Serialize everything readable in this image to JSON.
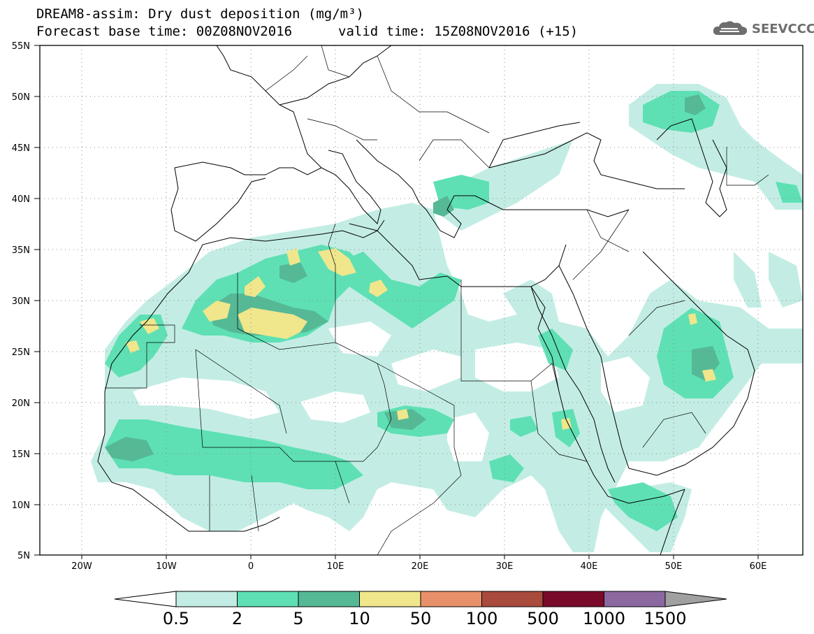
{
  "header": {
    "title": "DREAM8-assim: Dry dust deposition (mg/m³)",
    "base_time": "Forecast base time: 00Z08NOV2016",
    "valid_time": "valid time: 15Z08NOV2016 (+15)"
  },
  "logo": {
    "icon": "cloud-icon",
    "text": "SEEVCCC"
  },
  "map": {
    "lat_labels": [
      "55N",
      "50N",
      "45N",
      "40N",
      "35N",
      "30N",
      "25N",
      "20N",
      "15N",
      "10N",
      "5N"
    ],
    "lon_labels": [
      "20W",
      "10W",
      "0",
      "10E",
      "20E",
      "30E",
      "40E",
      "50E",
      "60E"
    ],
    "extent": {
      "lon_min": -25,
      "lon_max": 65,
      "lat_min": 5,
      "lat_max": 55
    }
  },
  "colorbar": {
    "labels": [
      "0.5",
      "2",
      "5",
      "10",
      "50",
      "100",
      "500",
      "1000",
      "1500"
    ],
    "colors": [
      "#c3ede4",
      "#5ee0b4",
      "#55b996",
      "#f0e68c",
      "#e8906a",
      "#a84a3c",
      "#7a0a2a",
      "#8c68a0"
    ],
    "under_color": "#ffffff",
    "over_color": "#a0a0a0"
  }
}
